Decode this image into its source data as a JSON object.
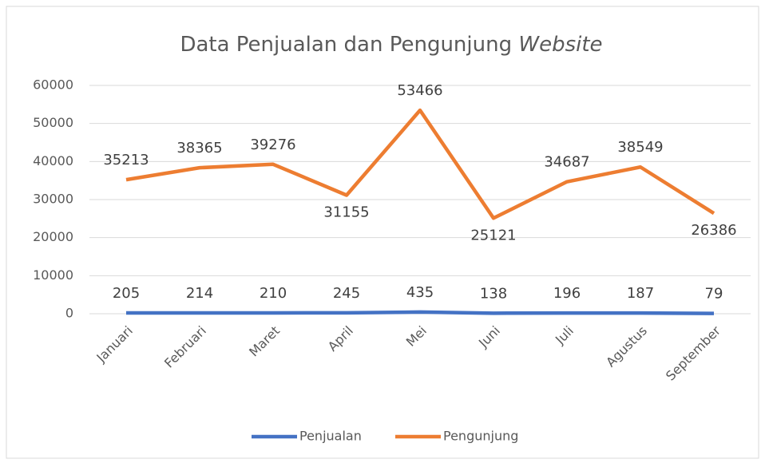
{
  "chart_data": {
    "type": "line",
    "title": "Data Penjualan dan Pengunjung",
    "title_emphasis": "Website",
    "categories": [
      "Januari",
      "Februari",
      "Maret",
      "April",
      "Mei",
      "Juni",
      "Juli",
      "Agustus",
      "September"
    ],
    "series": [
      {
        "name": "Penjualan",
        "color": "#4472c4",
        "values": [
          205,
          214,
          210,
          245,
          435,
          138,
          196,
          187,
          79
        ]
      },
      {
        "name": "Pengunjung",
        "color": "#ed7d31",
        "values": [
          35213,
          38365,
          39276,
          31155,
          53466,
          25121,
          34687,
          38549,
          26386
        ]
      }
    ],
    "ylim": [
      0,
      60000
    ],
    "yticks": [
      0,
      10000,
      20000,
      30000,
      40000,
      50000,
      60000
    ],
    "grid": true,
    "legend": "bottom"
  }
}
